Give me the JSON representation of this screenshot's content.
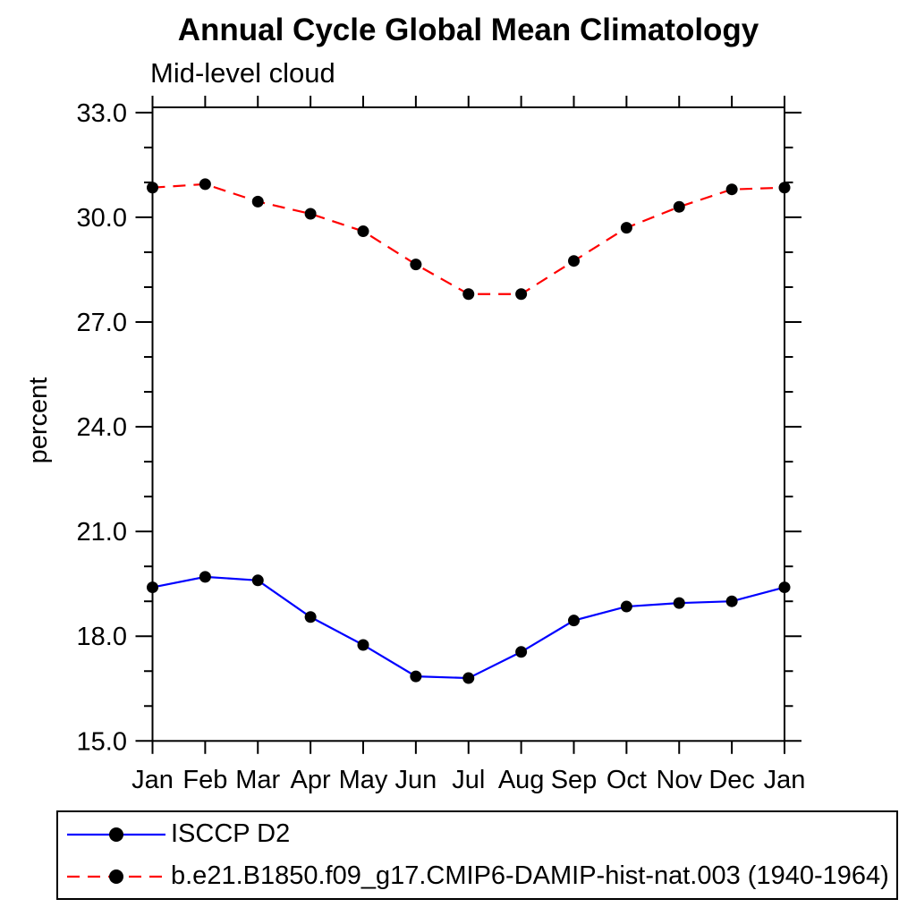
{
  "chart_data": {
    "type": "line",
    "title": "Annual Cycle Global Mean Climatology",
    "subtitle": "Mid-level cloud",
    "xlabel": "",
    "ylabel": "percent",
    "categories": [
      "Jan",
      "Feb",
      "Mar",
      "Apr",
      "May",
      "Jun",
      "Jul",
      "Aug",
      "Sep",
      "Oct",
      "Nov",
      "Dec",
      "Jan"
    ],
    "ylim": [
      15.0,
      33.15
    ],
    "yticks_major": [
      15.0,
      18.0,
      21.0,
      24.0,
      27.0,
      30.0,
      33.0
    ],
    "ytick_labels": [
      "15.0",
      "18.0",
      "21.0",
      "24.0",
      "27.0",
      "30.0",
      "33.0"
    ],
    "ytick_minor_step": 1.0,
    "grid": false,
    "legend_position": "bottom",
    "axis_color": "#000000",
    "marker_color": "#000000",
    "series": [
      {
        "name": "ISCCP D2",
        "color": "#0000ff",
        "style": "solid",
        "marker": "circle",
        "values": [
          19.4,
          19.7,
          19.6,
          18.55,
          17.75,
          16.85,
          16.8,
          17.55,
          18.45,
          18.85,
          18.95,
          19.0,
          19.4
        ]
      },
      {
        "name": "b.e21.B1850.f09_g17.CMIP6-DAMIP-hist-nat.003 (1940-1964)",
        "color": "#ff0000",
        "style": "dashed",
        "marker": "circle",
        "values": [
          30.85,
          30.95,
          30.45,
          30.1,
          29.6,
          28.65,
          27.8,
          27.8,
          28.75,
          29.7,
          30.3,
          30.8,
          30.85
        ]
      }
    ]
  }
}
